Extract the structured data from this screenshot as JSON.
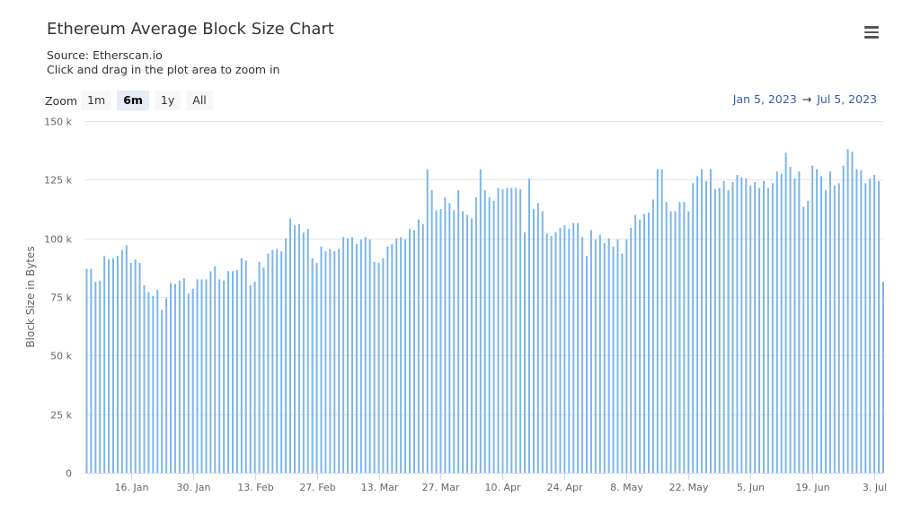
{
  "title": "Ethereum Average Block Size Chart",
  "subtitle_source": "Source: Etherscan.io",
  "subtitle_hint": "Click and drag in the plot area to zoom in",
  "menu_icon": "hamburger-menu-icon",
  "zoom": {
    "label": "Zoom",
    "buttons": [
      "1m",
      "6m",
      "1y",
      "All"
    ],
    "active": "6m"
  },
  "range": {
    "from": "Jan 5, 2023",
    "arrow": "→",
    "to": "Jul 5, 2023"
  },
  "colors": {
    "bar": "#7cb5ec",
    "grid": "#e6e6e6",
    "range_text": "#335cad"
  },
  "chart_data": {
    "type": "bar",
    "title": "Ethereum Average Block Size Chart",
    "ylabel": "Block Size in Bytes",
    "xlabel": "",
    "ylim": [
      0,
      150000
    ],
    "yticks": [
      0,
      25000,
      50000,
      75000,
      100000,
      125000,
      150000
    ],
    "ytick_labels": [
      "0",
      "25 k",
      "50 k",
      "75 k",
      "100 k",
      "125 k",
      "150 k"
    ],
    "xticks": [
      {
        "date": "2023-01-16",
        "label": "16. Jan"
      },
      {
        "date": "2023-01-30",
        "label": "30. Jan"
      },
      {
        "date": "2023-02-13",
        "label": "13. Feb"
      },
      {
        "date": "2023-02-27",
        "label": "27. Feb"
      },
      {
        "date": "2023-03-13",
        "label": "13. Mar"
      },
      {
        "date": "2023-03-27",
        "label": "27. Mar"
      },
      {
        "date": "2023-04-10",
        "label": "10. Apr"
      },
      {
        "date": "2023-04-24",
        "label": "24. Apr"
      },
      {
        "date": "2023-05-08",
        "label": "8. May"
      },
      {
        "date": "2023-05-22",
        "label": "22. May"
      },
      {
        "date": "2023-06-05",
        "label": "5. Jun"
      },
      {
        "date": "2023-06-19",
        "label": "19. Jun"
      },
      {
        "date": "2023-07-03",
        "label": "3. Jul"
      }
    ],
    "grid": true,
    "legend": false,
    "x_start": "2023-01-05",
    "x_end": "2023-07-05",
    "values": [
      87000,
      87000,
      81500,
      82000,
      92500,
      91000,
      91500,
      92500,
      95000,
      97000,
      89500,
      91000,
      89500,
      80000,
      77000,
      75500,
      78000,
      69500,
      74500,
      81000,
      80500,
      82000,
      83000,
      76500,
      78500,
      82500,
      82500,
      82500,
      86000,
      88000,
      82500,
      82000,
      86000,
      86000,
      86500,
      91500,
      90500,
      80000,
      81500,
      90000,
      87500,
      93500,
      95000,
      95500,
      94500,
      100000,
      108500,
      105500,
      106000,
      102500,
      104000,
      91500,
      89500,
      96500,
      94500,
      95500,
      94500,
      95500,
      100500,
      100000,
      100500,
      97500,
      99500,
      100500,
      99500,
      90000,
      89500,
      91500,
      96500,
      97500,
      100000,
      100500,
      99500,
      104000,
      103500,
      108000,
      106000,
      129500,
      120500,
      112000,
      112500,
      117500,
      115000,
      112000,
      120500,
      111500,
      110000,
      108500,
      117500,
      129500,
      120500,
      117500,
      116000,
      121500,
      121000,
      121500,
      121500,
      121500,
      121000,
      102500,
      125500,
      112500,
      115000,
      111500,
      102000,
      101000,
      102500,
      104500,
      105500,
      104000,
      106500,
      106500,
      100500,
      92500,
      103500,
      99500,
      101500,
      98000,
      100000,
      96500,
      99500,
      93500,
      99500,
      104500,
      110000,
      108000,
      110500,
      111000,
      116500,
      129500,
      129500,
      115500,
      111500,
      111500,
      115500,
      115500,
      111500,
      123500,
      126500,
      129500,
      124500,
      129500,
      121000,
      121500,
      124500,
      120500,
      124000,
      127000,
      126000,
      125500,
      122500,
      124000,
      121500,
      124500,
      121500,
      123500,
      128500,
      127500,
      136500,
      130500,
      125500,
      128500,
      113500,
      116000,
      131000,
      129500,
      126500,
      120500,
      128500,
      122500,
      123500,
      131000,
      138000,
      137000,
      129500,
      129000,
      123500,
      125500,
      127000,
      124500,
      81500
    ]
  }
}
